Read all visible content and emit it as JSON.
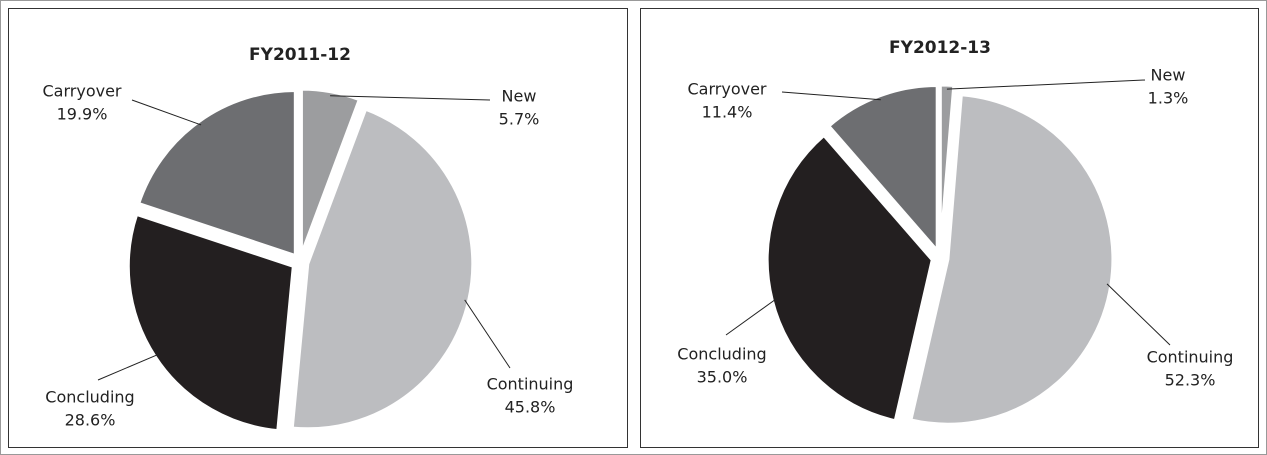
{
  "chart_data": [
    {
      "type": "pie",
      "title": "FY2011-12",
      "categories": [
        "New",
        "Continuing",
        "Concluding",
        "Carryover"
      ],
      "values": [
        5.7,
        45.8,
        28.6,
        19.9
      ],
      "value_labels": [
        "5.7%",
        "45.8%",
        "28.6%",
        "19.9%"
      ],
      "colors": [
        "#9c9d9f",
        "#bcbdc0",
        "#231f20",
        "#6d6e71"
      ]
    },
    {
      "type": "pie",
      "title": "FY2012-13",
      "categories": [
        "New",
        "Continuing",
        "Concluding",
        "Carryover"
      ],
      "values": [
        1.3,
        52.3,
        35.0,
        11.4
      ],
      "value_labels": [
        "1.3%",
        "52.3%",
        "35.0%",
        "11.4%"
      ],
      "colors": [
        "#9c9d9f",
        "#bcbdc0",
        "#231f20",
        "#6d6e71"
      ]
    }
  ]
}
